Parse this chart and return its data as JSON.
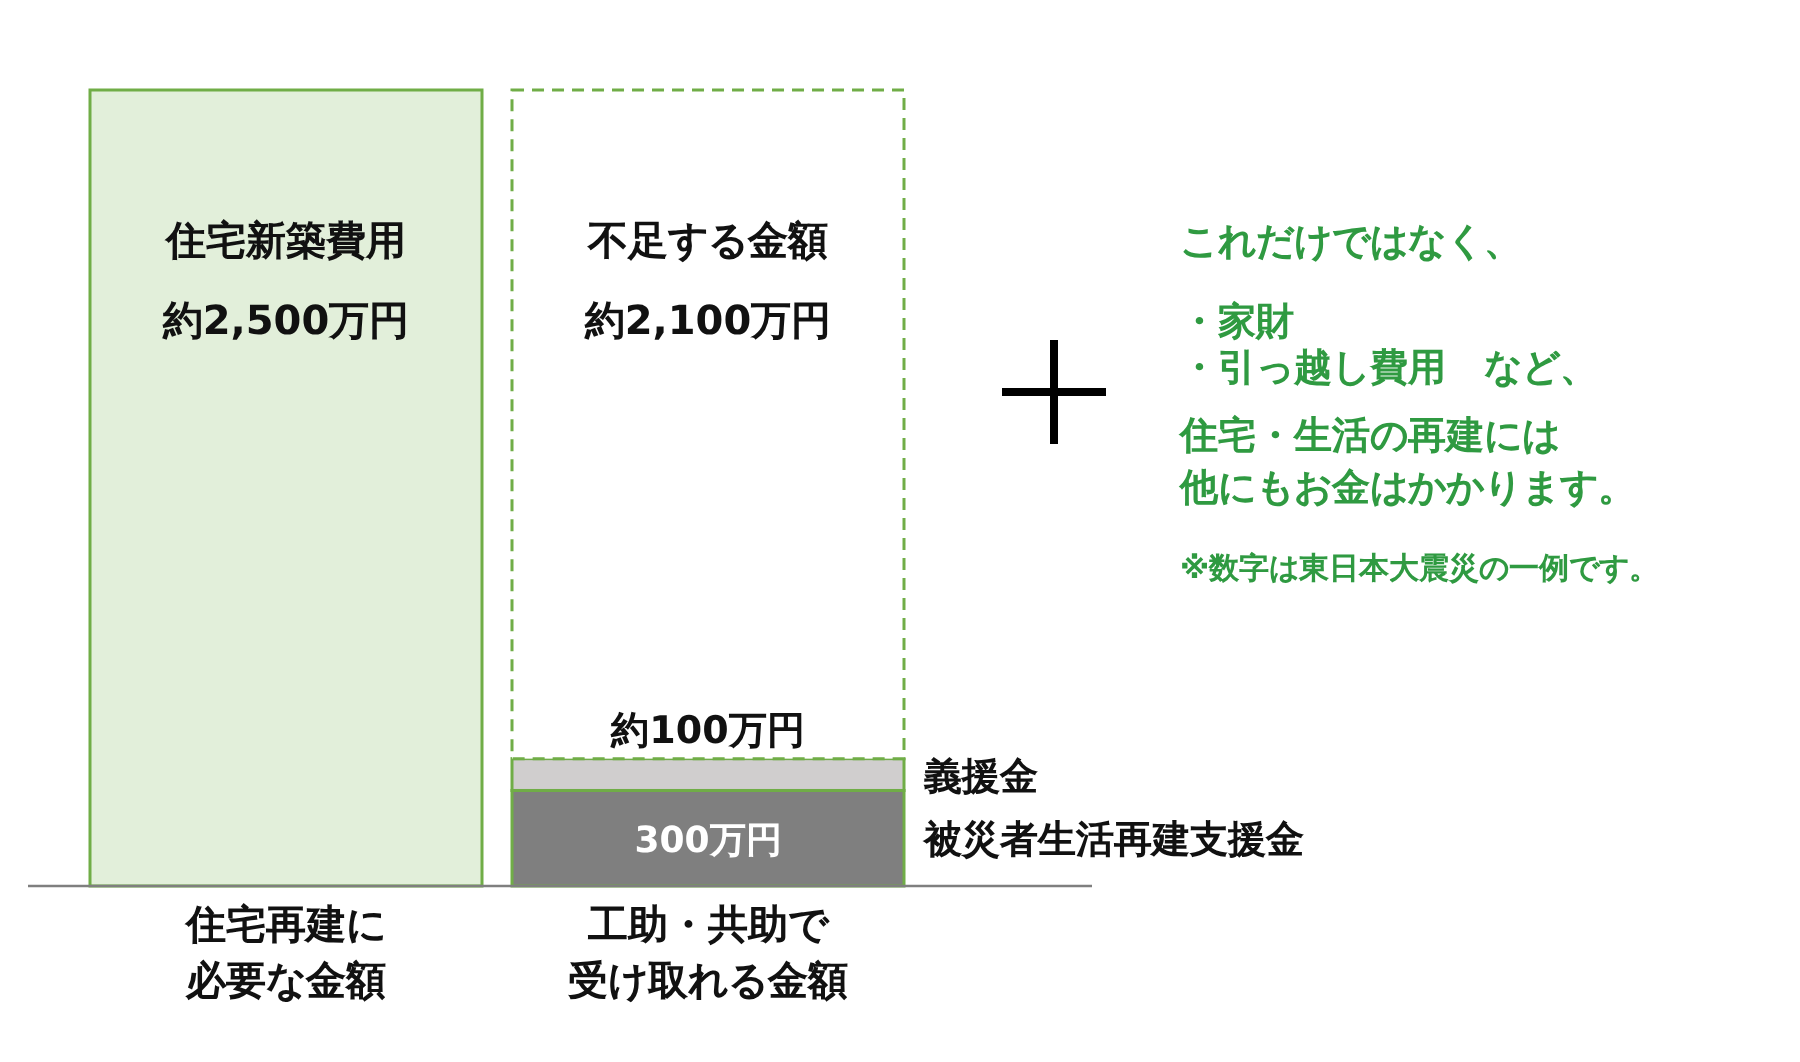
{
  "chart_data": {
    "type": "bar",
    "stacked": true,
    "categories": [
      "住宅再建に必要な金額",
      "工助・共助で受け取れる金額"
    ],
    "series": [
      {
        "name": "住宅新築費用",
        "color": "#e2efda",
        "values": [
          2500,
          null
        ],
        "value_labels": [
          "約2,500万円",
          null
        ]
      },
      {
        "name": "被災者生活再建支援金",
        "color": "#7f7f7f",
        "values": [
          null,
          300
        ],
        "value_labels": [
          null,
          "300万円"
        ]
      },
      {
        "name": "義援金",
        "color": "#d0cece",
        "values": [
          null,
          100
        ],
        "value_labels": [
          null,
          "約100万円"
        ]
      },
      {
        "name": "不足する金額",
        "color": "#ffffff",
        "line_style": "dashed",
        "values": [
          null,
          2100
        ],
        "value_labels": [
          null,
          "約2,100万円"
        ]
      }
    ],
    "annotations": [
      "これだけではなく、",
      "・家財",
      "・引っ越し費用　など、",
      "住宅・生活の再建には",
      "他にもお金はかかります。",
      "※数字は東日本大震災の一例です。"
    ]
  }
}
